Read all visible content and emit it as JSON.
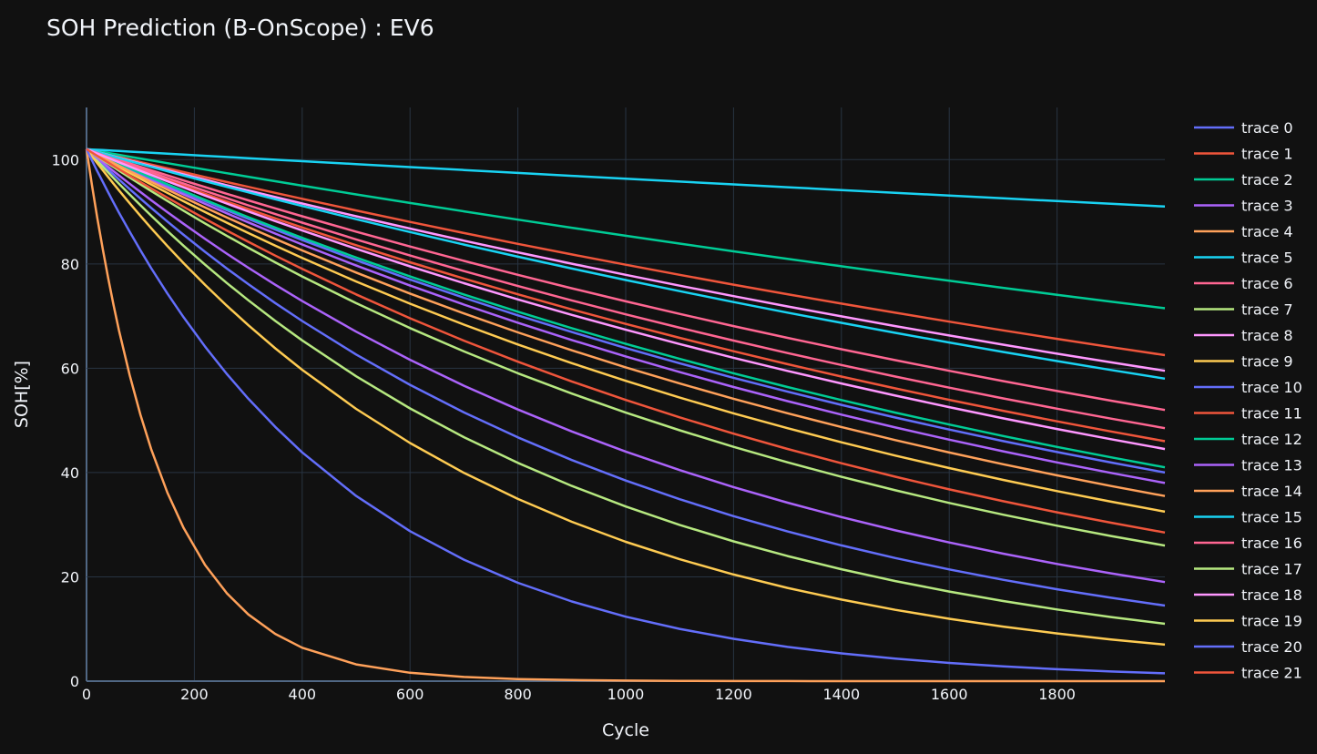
{
  "chart_data": {
    "type": "line",
    "title": "SOH Prediction (B-OnScope) : EV6",
    "xlabel": "Cycle",
    "ylabel": "SOH[%]",
    "xlim": [
      0,
      2000
    ],
    "ylim": [
      0,
      110
    ],
    "x_ticks": [
      0,
      200,
      400,
      600,
      800,
      1000,
      1200,
      1400,
      1600,
      1800
    ],
    "y_ticks": [
      0,
      20,
      40,
      60,
      80,
      100
    ],
    "grid": true,
    "legend_position": "right",
    "series_model": "exponential decay, SOH = start * exp(-k * cycle); listed values are start and SOH at cycle 2000",
    "x_samples": [
      0,
      10,
      20,
      30,
      40,
      50,
      60,
      80,
      100,
      120,
      150,
      180,
      220,
      260,
      300,
      350,
      400,
      500,
      600,
      700,
      800,
      900,
      1000,
      1100,
      1200,
      1300,
      1400,
      1500,
      1600,
      1700,
      1800,
      1900,
      2000
    ],
    "series": [
      {
        "name": "trace 0",
        "color": "#636efa",
        "start": 102,
        "end": 14.5
      },
      {
        "name": "trace 1",
        "color": "#EF553B",
        "start": 102,
        "end": 62.5
      },
      {
        "name": "trace 2",
        "color": "#00cc96",
        "start": 102,
        "end": 71.5
      },
      {
        "name": "trace 3",
        "color": "#ab63fa",
        "start": 102,
        "end": 38
      },
      {
        "name": "trace 4",
        "color": "#FFA15A",
        "start": 102,
        "end": 0.0
      },
      {
        "name": "trace 5",
        "color": "#19d3f3",
        "start": 102,
        "end": 91
      },
      {
        "name": "trace 6",
        "color": "#FF6692",
        "start": 102,
        "end": 52
      },
      {
        "name": "trace 7",
        "color": "#B6E880",
        "start": 102,
        "end": 11
      },
      {
        "name": "trace 8",
        "color": "#FF97FF",
        "start": 102,
        "end": 59.5
      },
      {
        "name": "trace 9",
        "color": "#FECB52",
        "start": 102,
        "end": 32.5
      },
      {
        "name": "trace 10",
        "color": "#636efa",
        "start": 102,
        "end": 40
      },
      {
        "name": "trace 11",
        "color": "#EF553B",
        "start": 102,
        "end": 46
      },
      {
        "name": "trace 12",
        "color": "#00cc96",
        "start": 102,
        "end": 41
      },
      {
        "name": "trace 13",
        "color": "#ab63fa",
        "start": 102,
        "end": 19
      },
      {
        "name": "trace 14",
        "color": "#FFA15A",
        "start": 102,
        "end": 35.5
      },
      {
        "name": "trace 15",
        "color": "#19d3f3",
        "start": 102,
        "end": 58
      },
      {
        "name": "trace 16",
        "color": "#FF6692",
        "start": 102,
        "end": 48.5
      },
      {
        "name": "trace 17",
        "color": "#B6E880",
        "start": 102,
        "end": 26
      },
      {
        "name": "trace 18",
        "color": "#FF97FF",
        "start": 102,
        "end": 44.5
      },
      {
        "name": "trace 19",
        "color": "#FECB52",
        "start": 102,
        "end": 7
      },
      {
        "name": "trace 20",
        "color": "#636efa",
        "start": 102,
        "end": 1.5
      },
      {
        "name": "trace 21",
        "color": "#EF553B",
        "start": 102,
        "end": 28.5
      }
    ]
  }
}
